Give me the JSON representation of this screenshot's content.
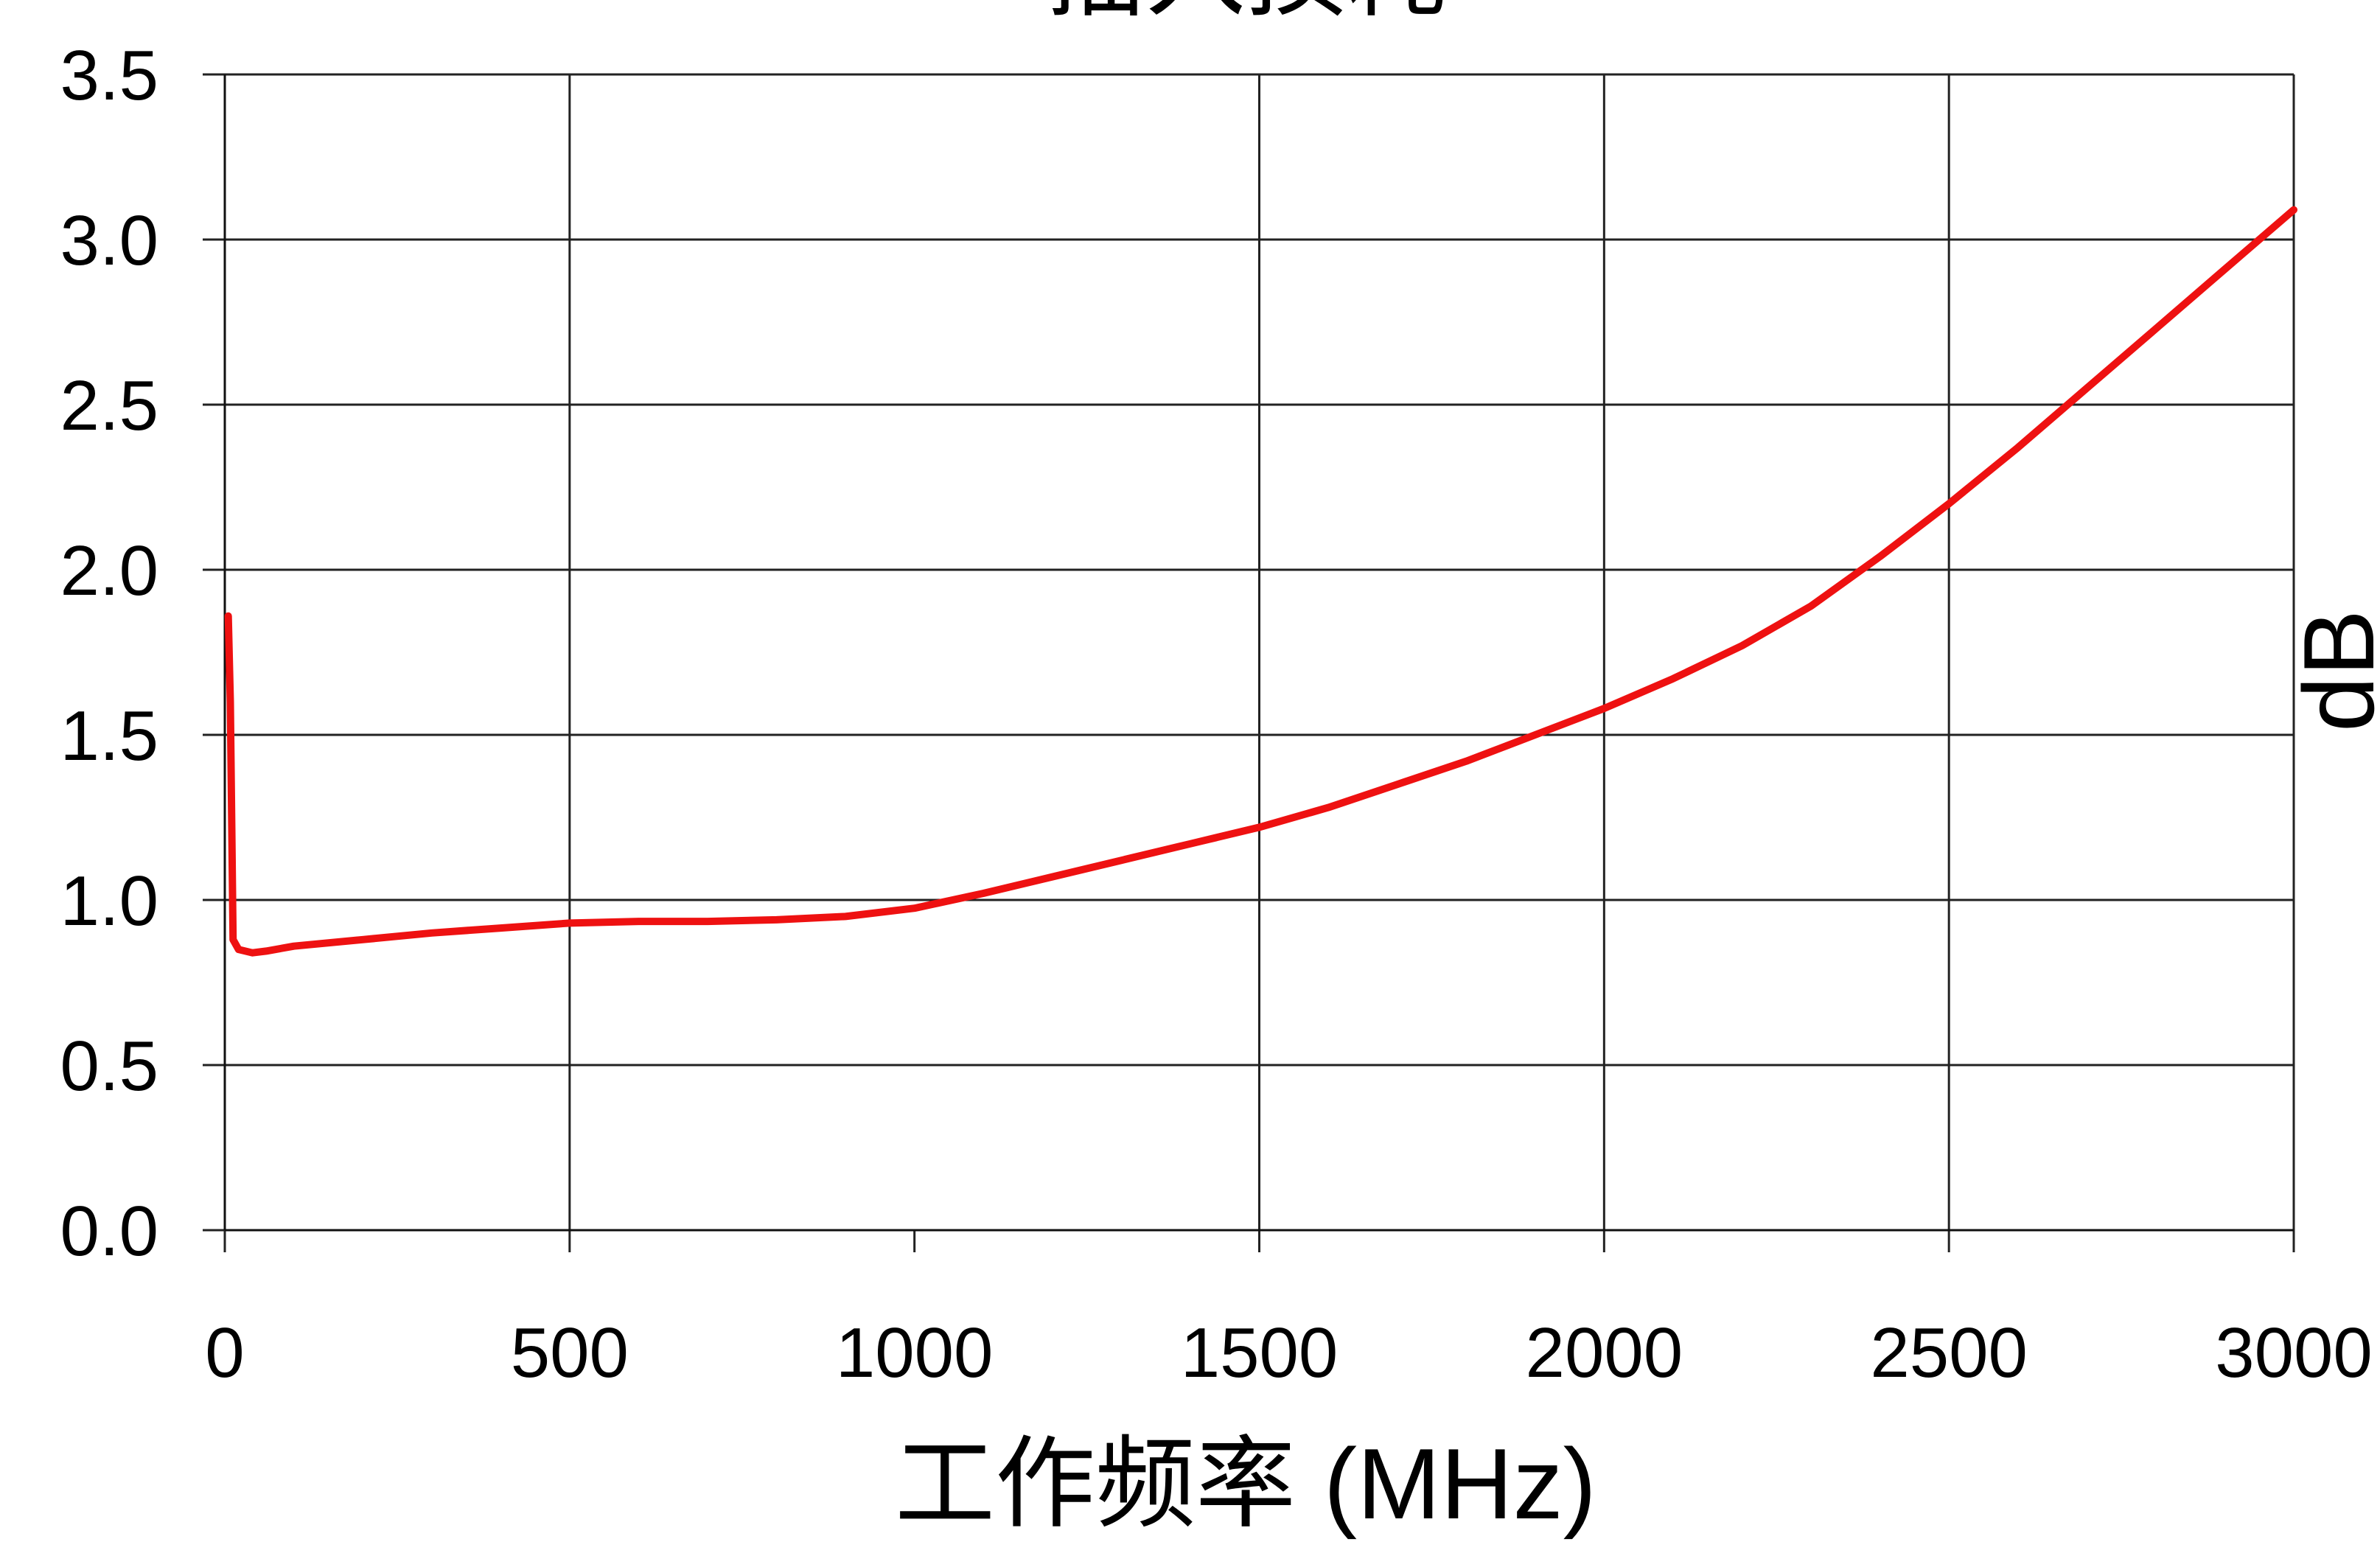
{
  "chart_data": {
    "type": "line",
    "title": "插入损耗",
    "xlabel": "工作频率 (MHz)",
    "ylabel": "dB",
    "xlim": [
      0,
      3000
    ],
    "ylim": [
      0,
      3.5
    ],
    "x_ticks": [
      "0",
      "500",
      "1000",
      "1500",
      "2000",
      "2500",
      "3000"
    ],
    "y_ticks": [
      "0.0",
      "0.5",
      "1.0",
      "1.5",
      "2.0",
      "2.5",
      "3.0",
      "3.5"
    ],
    "grid": true,
    "legend": "none",
    "series": [
      {
        "color": "#ee1111",
        "x": [
          5,
          8,
          12,
          20,
          40,
          60,
          100,
          200,
          300,
          400,
          500,
          600,
          700,
          800,
          900,
          1000,
          1100,
          1200,
          1300,
          1400,
          1500,
          1600,
          1700,
          1800,
          1900,
          2000,
          2100,
          2200,
          2300,
          2400,
          2500,
          2600,
          2700,
          2800,
          2900,
          3000
        ],
        "y": [
          1.86,
          1.6,
          0.88,
          0.85,
          0.84,
          0.845,
          0.86,
          0.88,
          0.9,
          0.915,
          0.93,
          0.935,
          0.935,
          0.94,
          0.95,
          0.975,
          1.02,
          1.07,
          1.12,
          1.17,
          1.22,
          1.28,
          1.35,
          1.42,
          1.5,
          1.58,
          1.67,
          1.77,
          1.89,
          2.04,
          2.2,
          2.37,
          2.55,
          2.73,
          2.91,
          3.09
        ]
      }
    ]
  }
}
